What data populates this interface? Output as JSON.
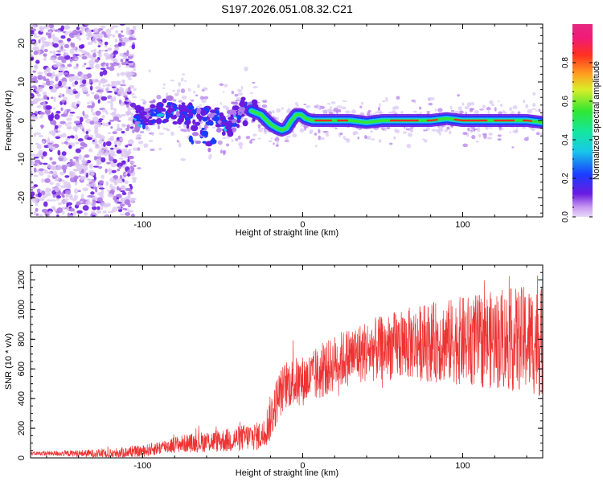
{
  "title": "S197.2026.051.08.32.C21",
  "colors": {
    "snr_line": "#ee3333",
    "axis": "#000000",
    "scatter_low": "#d9c6f2",
    "scatter_mid": "#b07be8",
    "scatter_high": "#6a1be0",
    "ridge_blue": "#1a3cff",
    "ridge_cyan": "#18c8e8",
    "ridge_green": "#32e632",
    "ridge_red": "#ee2a2a"
  },
  "chart_data": [
    {
      "type": "heatmap",
      "id": "spectrogram",
      "xlabel": "Height of straight line (km)",
      "ylabel": "Frequency (Hz)",
      "xlim": [
        -170,
        150
      ],
      "ylim": [
        -25,
        25
      ],
      "xticks": [
        -100,
        0,
        100
      ],
      "yticks": [
        -20,
        -10,
        0,
        10,
        20
      ],
      "ridge": {
        "x": [
          -105,
          -95,
          -85,
          -75,
          -65,
          -55,
          -45,
          -38,
          -32,
          -26,
          -20,
          -16,
          -13,
          -10,
          -7,
          -4,
          -1,
          2,
          6,
          10,
          20,
          30,
          40,
          50,
          60,
          70,
          80,
          90,
          100,
          110,
          120,
          130,
          140,
          150
        ],
        "y": [
          0,
          2,
          3,
          2,
          1,
          0,
          -1,
          3,
          2.5,
          1.5,
          -1,
          -2,
          -2.5,
          -2,
          0,
          1.5,
          1.5,
          0.5,
          0,
          0,
          0,
          0,
          -0.5,
          0,
          0,
          0,
          0,
          0.5,
          0,
          0,
          0,
          0,
          0,
          -0.5
        ]
      },
      "colorbar": {
        "label": "Normalized spectral amplitude",
        "range": [
          0,
          1
        ],
        "ticks": [
          "0.0",
          "0.2",
          "0.4",
          "0.6",
          "0.8"
        ],
        "tick_values": [
          0,
          0.2,
          0.4,
          0.6,
          0.8
        ]
      }
    },
    {
      "type": "line",
      "id": "snr",
      "xlabel": "Height of straight line (km)",
      "ylabel": "SNR (10 * v/v)",
      "xlim": [
        -170,
        150
      ],
      "ylim": [
        0,
        1300
      ],
      "xticks": [
        -100,
        0,
        100
      ],
      "yticks": [
        0,
        200,
        400,
        600,
        800,
        1000,
        1200
      ],
      "envelope": {
        "x": [
          -170,
          -120,
          -100,
          -80,
          -60,
          -45,
          -35,
          -25,
          -20,
          -15,
          -10,
          -5,
          0,
          10,
          20,
          30,
          40,
          50,
          60,
          70,
          80,
          90,
          100,
          110,
          120,
          130,
          140,
          150
        ],
        "y": [
          30,
          30,
          45,
          90,
          110,
          120,
          140,
          150,
          270,
          420,
          500,
          510,
          520,
          560,
          640,
          690,
          720,
          740,
          760,
          775,
          780,
          785,
          790,
          790,
          795,
          795,
          800,
          780
        ]
      },
      "noise": {
        "x": [
          -170,
          -100,
          -50,
          -25,
          -20,
          0,
          50,
          100,
          150
        ],
        "amplitude": [
          12,
          40,
          80,
          100,
          160,
          170,
          220,
          300,
          380
        ]
      },
      "sample_count": 2000
    }
  ]
}
